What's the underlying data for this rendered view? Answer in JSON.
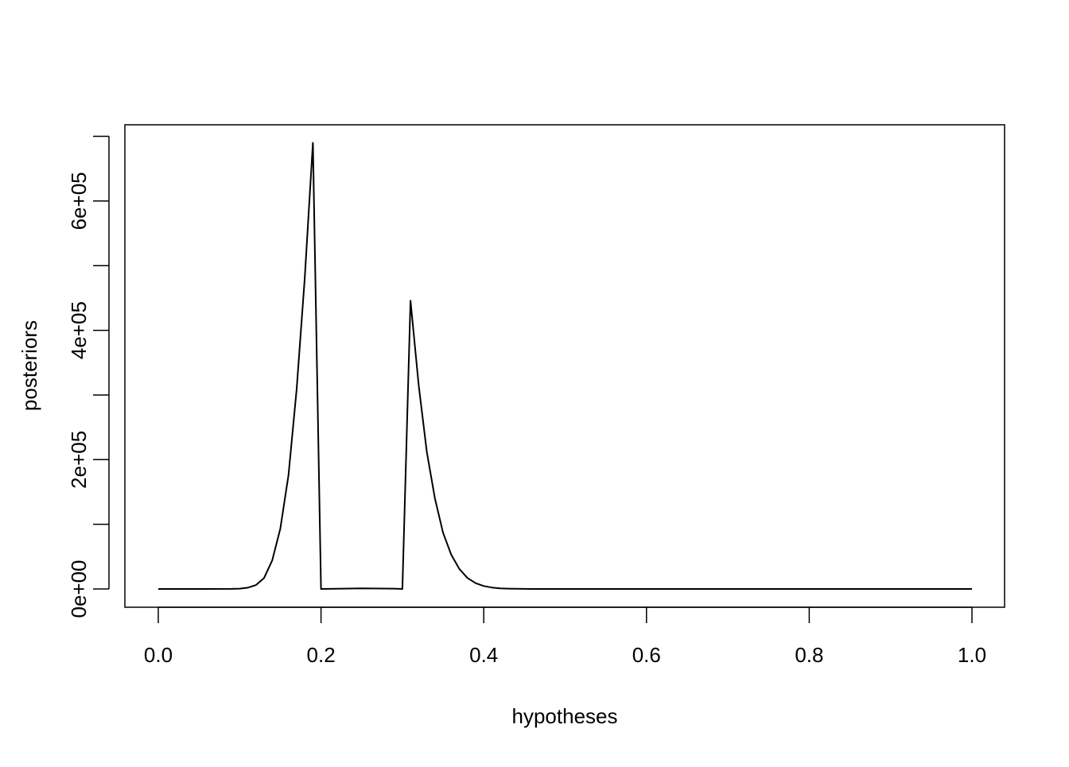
{
  "chart_data": {
    "type": "line",
    "title": "",
    "xlabel": "hypotheses",
    "ylabel": "posteriors",
    "xlim": [
      0,
      1
    ],
    "ylim": [
      0,
      690000
    ],
    "grid": false,
    "x_ticks": [
      0.0,
      0.2,
      0.4,
      0.6,
      0.8,
      1.0
    ],
    "x_tick_labels": [
      "0.0",
      "0.2",
      "0.4",
      "0.6",
      "0.8",
      "1.0"
    ],
    "y_ticks": [
      0,
      100000,
      200000,
      300000,
      400000,
      500000,
      600000,
      700000
    ],
    "y_tick_labels": [
      "0e+00",
      "",
      "2e+05",
      "",
      "4e+05",
      "",
      "6e+05",
      ""
    ],
    "color": "#000000",
    "points": [
      [
        0.0,
        0
      ],
      [
        0.05,
        0
      ],
      [
        0.09,
        100
      ],
      [
        0.1,
        500
      ],
      [
        0.11,
        2000
      ],
      [
        0.12,
        6000
      ],
      [
        0.13,
        17000
      ],
      [
        0.14,
        44000
      ],
      [
        0.15,
        93000
      ],
      [
        0.16,
        176000
      ],
      [
        0.17,
        308000
      ],
      [
        0.18,
        480000
      ],
      [
        0.19,
        690000
      ],
      [
        0.2,
        0
      ],
      [
        0.25,
        1000
      ],
      [
        0.29,
        500
      ],
      [
        0.3,
        0
      ],
      [
        0.31,
        446000
      ],
      [
        0.32,
        315000
      ],
      [
        0.33,
        212000
      ],
      [
        0.34,
        140000
      ],
      [
        0.35,
        87000
      ],
      [
        0.36,
        53000
      ],
      [
        0.37,
        31000
      ],
      [
        0.38,
        17000
      ],
      [
        0.39,
        9000
      ],
      [
        0.4,
        4500
      ],
      [
        0.41,
        2200
      ],
      [
        0.42,
        1000
      ],
      [
        0.43,
        500
      ],
      [
        0.44,
        200
      ],
      [
        0.46,
        0
      ],
      [
        1.0,
        0
      ]
    ]
  }
}
